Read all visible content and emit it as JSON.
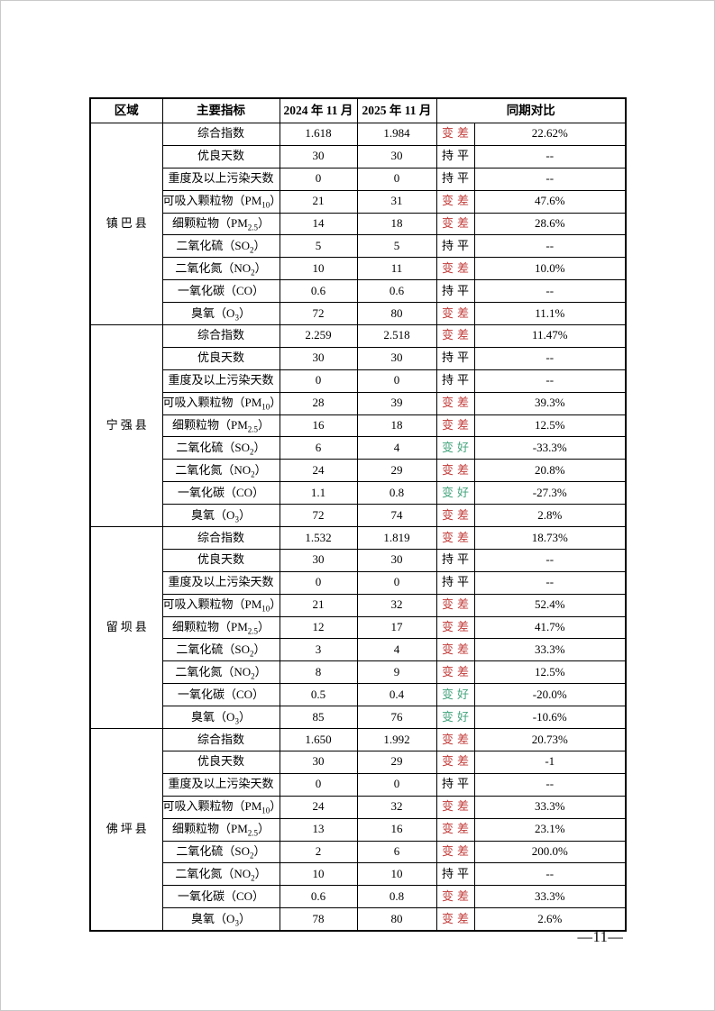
{
  "page": {
    "number": "—11—"
  },
  "colors": {
    "worse": "#c13b38",
    "better": "#44a47e",
    "same": "#000000"
  },
  "table": {
    "headers": {
      "region": "区域",
      "indicator": "主要指标",
      "month_2024": "2024 年 11 月",
      "month_2025": "2025 年 11 月",
      "compare": "同期对比"
    },
    "regions": [
      {
        "name": "镇巴县",
        "rows": [
          {
            "indicator_pre": "综合指数",
            "indicator_sub": "",
            "indicator_post": "",
            "v2024": "1.618",
            "v2025": "1.984",
            "trend": "变差",
            "trend_type": "worse",
            "change": "22.62%"
          },
          {
            "indicator_pre": "优良天数",
            "indicator_sub": "",
            "indicator_post": "",
            "v2024": "30",
            "v2025": "30",
            "trend": "持平",
            "trend_type": "same",
            "change": "--"
          },
          {
            "indicator_pre": "重度及以上污染天数",
            "indicator_sub": "",
            "indicator_post": "",
            "v2024": "0",
            "v2025": "0",
            "trend": "持平",
            "trend_type": "same",
            "change": "--"
          },
          {
            "indicator_pre": "可吸入颗粒物（PM",
            "indicator_sub": "10",
            "indicator_post": "）",
            "v2024": "21",
            "v2025": "31",
            "trend": "变差",
            "trend_type": "worse",
            "change": "47.6%"
          },
          {
            "indicator_pre": "细颗粒物（PM",
            "indicator_sub": "2.5",
            "indicator_post": "）",
            "v2024": "14",
            "v2025": "18",
            "trend": "变差",
            "trend_type": "worse",
            "change": "28.6%"
          },
          {
            "indicator_pre": "二氧化硫（SO",
            "indicator_sub": "2",
            "indicator_post": "）",
            "v2024": "5",
            "v2025": "5",
            "trend": "持平",
            "trend_type": "same",
            "change": "--"
          },
          {
            "indicator_pre": "二氧化氮（NO",
            "indicator_sub": "2",
            "indicator_post": "）",
            "v2024": "10",
            "v2025": "11",
            "trend": "变差",
            "trend_type": "worse",
            "change": "10.0%"
          },
          {
            "indicator_pre": "一氧化碳（CO）",
            "indicator_sub": "",
            "indicator_post": "",
            "v2024": "0.6",
            "v2025": "0.6",
            "trend": "持平",
            "trend_type": "same",
            "change": "--"
          },
          {
            "indicator_pre": "臭氧（O",
            "indicator_sub": "3",
            "indicator_post": "）",
            "v2024": "72",
            "v2025": "80",
            "trend": "变差",
            "trend_type": "worse",
            "change": "11.1%"
          }
        ]
      },
      {
        "name": "宁强县",
        "rows": [
          {
            "indicator_pre": "综合指数",
            "indicator_sub": "",
            "indicator_post": "",
            "v2024": "2.259",
            "v2025": "2.518",
            "trend": "变差",
            "trend_type": "worse",
            "change": "11.47%"
          },
          {
            "indicator_pre": "优良天数",
            "indicator_sub": "",
            "indicator_post": "",
            "v2024": "30",
            "v2025": "30",
            "trend": "持平",
            "trend_type": "same",
            "change": "--"
          },
          {
            "indicator_pre": "重度及以上污染天数",
            "indicator_sub": "",
            "indicator_post": "",
            "v2024": "0",
            "v2025": "0",
            "trend": "持平",
            "trend_type": "same",
            "change": "--"
          },
          {
            "indicator_pre": "可吸入颗粒物（PM",
            "indicator_sub": "10",
            "indicator_post": "）",
            "v2024": "28",
            "v2025": "39",
            "trend": "变差",
            "trend_type": "worse",
            "change": "39.3%"
          },
          {
            "indicator_pre": "细颗粒物（PM",
            "indicator_sub": "2.5",
            "indicator_post": "）",
            "v2024": "16",
            "v2025": "18",
            "trend": "变差",
            "trend_type": "worse",
            "change": "12.5%"
          },
          {
            "indicator_pre": "二氧化硫（SO",
            "indicator_sub": "2",
            "indicator_post": "）",
            "v2024": "6",
            "v2025": "4",
            "trend": "变好",
            "trend_type": "better",
            "change": "-33.3%"
          },
          {
            "indicator_pre": "二氧化氮（NO",
            "indicator_sub": "2",
            "indicator_post": "）",
            "v2024": "24",
            "v2025": "29",
            "trend": "变差",
            "trend_type": "worse",
            "change": "20.8%"
          },
          {
            "indicator_pre": "一氧化碳（CO）",
            "indicator_sub": "",
            "indicator_post": "",
            "v2024": "1.1",
            "v2025": "0.8",
            "trend": "变好",
            "trend_type": "better",
            "change": "-27.3%"
          },
          {
            "indicator_pre": "臭氧（O",
            "indicator_sub": "3",
            "indicator_post": "）",
            "v2024": "72",
            "v2025": "74",
            "trend": "变差",
            "trend_type": "worse",
            "change": "2.8%"
          }
        ]
      },
      {
        "name": "留坝县",
        "rows": [
          {
            "indicator_pre": "综合指数",
            "indicator_sub": "",
            "indicator_post": "",
            "v2024": "1.532",
            "v2025": "1.819",
            "trend": "变差",
            "trend_type": "worse",
            "change": "18.73%"
          },
          {
            "indicator_pre": "优良天数",
            "indicator_sub": "",
            "indicator_post": "",
            "v2024": "30",
            "v2025": "30",
            "trend": "持平",
            "trend_type": "same",
            "change": "--"
          },
          {
            "indicator_pre": "重度及以上污染天数",
            "indicator_sub": "",
            "indicator_post": "",
            "v2024": "0",
            "v2025": "0",
            "trend": "持平",
            "trend_type": "same",
            "change": "--"
          },
          {
            "indicator_pre": "可吸入颗粒物（PM",
            "indicator_sub": "10",
            "indicator_post": "）",
            "v2024": "21",
            "v2025": "32",
            "trend": "变差",
            "trend_type": "worse",
            "change": "52.4%"
          },
          {
            "indicator_pre": "细颗粒物（PM",
            "indicator_sub": "2.5",
            "indicator_post": "）",
            "v2024": "12",
            "v2025": "17",
            "trend": "变差",
            "trend_type": "worse",
            "change": "41.7%"
          },
          {
            "indicator_pre": "二氧化硫（SO",
            "indicator_sub": "2",
            "indicator_post": "）",
            "v2024": "3",
            "v2025": "4",
            "trend": "变差",
            "trend_type": "worse",
            "change": "33.3%"
          },
          {
            "indicator_pre": "二氧化氮（NO",
            "indicator_sub": "2",
            "indicator_post": "）",
            "v2024": "8",
            "v2025": "9",
            "trend": "变差",
            "trend_type": "worse",
            "change": "12.5%"
          },
          {
            "indicator_pre": "一氧化碳（CO）",
            "indicator_sub": "",
            "indicator_post": "",
            "v2024": "0.5",
            "v2025": "0.4",
            "trend": "变好",
            "trend_type": "better",
            "change": "-20.0%"
          },
          {
            "indicator_pre": "臭氧（O",
            "indicator_sub": "3",
            "indicator_post": "）",
            "v2024": "85",
            "v2025": "76",
            "trend": "变好",
            "trend_type": "better",
            "change": "-10.6%"
          }
        ]
      },
      {
        "name": "佛坪县",
        "rows": [
          {
            "indicator_pre": "综合指数",
            "indicator_sub": "",
            "indicator_post": "",
            "v2024": "1.650",
            "v2025": "1.992",
            "trend": "变差",
            "trend_type": "worse",
            "change": "20.73%"
          },
          {
            "indicator_pre": "优良天数",
            "indicator_sub": "",
            "indicator_post": "",
            "v2024": "30",
            "v2025": "29",
            "trend": "变差",
            "trend_type": "worse",
            "change": "-1"
          },
          {
            "indicator_pre": "重度及以上污染天数",
            "indicator_sub": "",
            "indicator_post": "",
            "v2024": "0",
            "v2025": "0",
            "trend": "持平",
            "trend_type": "same",
            "change": "--"
          },
          {
            "indicator_pre": "可吸入颗粒物（PM",
            "indicator_sub": "10",
            "indicator_post": "）",
            "v2024": "24",
            "v2025": "32",
            "trend": "变差",
            "trend_type": "worse",
            "change": "33.3%"
          },
          {
            "indicator_pre": "细颗粒物（PM",
            "indicator_sub": "2.5",
            "indicator_post": "）",
            "v2024": "13",
            "v2025": "16",
            "trend": "变差",
            "trend_type": "worse",
            "change": "23.1%"
          },
          {
            "indicator_pre": "二氧化硫（SO",
            "indicator_sub": "2",
            "indicator_post": "）",
            "v2024": "2",
            "v2025": "6",
            "trend": "变差",
            "trend_type": "worse",
            "change": "200.0%"
          },
          {
            "indicator_pre": "二氧化氮（NO",
            "indicator_sub": "2",
            "indicator_post": "）",
            "v2024": "10",
            "v2025": "10",
            "trend": "持平",
            "trend_type": "same",
            "change": "--"
          },
          {
            "indicator_pre": "一氧化碳（CO）",
            "indicator_sub": "",
            "indicator_post": "",
            "v2024": "0.6",
            "v2025": "0.8",
            "trend": "变差",
            "trend_type": "worse",
            "change": "33.3%"
          },
          {
            "indicator_pre": "臭氧（O",
            "indicator_sub": "3",
            "indicator_post": "）",
            "v2024": "78",
            "v2025": "80",
            "trend": "变差",
            "trend_type": "worse",
            "change": "2.6%"
          }
        ]
      }
    ]
  }
}
